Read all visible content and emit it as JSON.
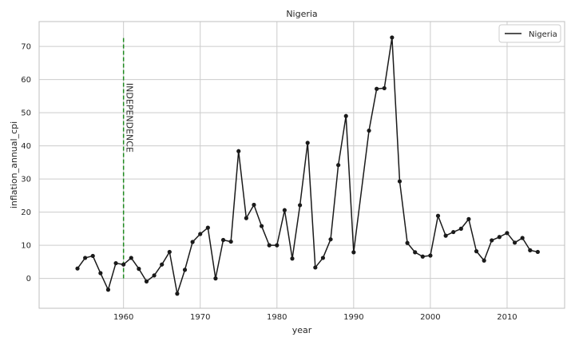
{
  "chart_data": {
    "type": "line",
    "title": "Nigeria",
    "xlabel": "year",
    "ylabel": "inflation_annual_cpi",
    "xlim": [
      1949,
      2017.5
    ],
    "ylim": [
      -9,
      77.5
    ],
    "xticks": [
      1960,
      1970,
      1980,
      1990,
      2000,
      2010
    ],
    "yticks": [
      0,
      10,
      20,
      30,
      40,
      50,
      60,
      70
    ],
    "grid": true,
    "legend": {
      "position": "top-right",
      "entries": [
        "Nigeria"
      ]
    },
    "colors": {
      "line": "#1a1a1a",
      "annotation": "#1f8a1f",
      "grid": "#cccccc",
      "frame": "#bfbfbf"
    },
    "annotation": {
      "text": "INDEPENDENCE",
      "x": 1960,
      "y_range": [
        0,
        72.7
      ]
    },
    "series": [
      {
        "name": "Nigeria",
        "x": [
          1954,
          1955,
          1956,
          1957,
          1958,
          1959,
          1960,
          1961,
          1962,
          1963,
          1964,
          1965,
          1966,
          1967,
          1968,
          1969,
          1970,
          1971,
          1972,
          1973,
          1974,
          1975,
          1976,
          1977,
          1978,
          1979,
          1980,
          1981,
          1982,
          1983,
          1984,
          1985,
          1986,
          1987,
          1988,
          1989,
          1990,
          1992,
          1993,
          1994,
          1995,
          1996,
          1997,
          1998,
          1999,
          2000,
          2001,
          2002,
          2003,
          2004,
          2005,
          2006,
          2007,
          2008,
          2009,
          2010,
          2011,
          2012,
          2013,
          2014
        ],
        "y": [
          3.0,
          6.2,
          6.8,
          1.6,
          -3.4,
          4.6,
          4.2,
          6.2,
          2.9,
          -0.9,
          0.9,
          4.2,
          8.0,
          -4.6,
          2.6,
          11.0,
          13.4,
          15.3,
          0.0,
          11.6,
          11.1,
          38.4,
          18.2,
          22.2,
          15.8,
          10.0,
          10.0,
          20.6,
          6.0,
          22.1,
          40.9,
          3.3,
          6.2,
          11.8,
          34.2,
          49.0,
          7.9,
          44.6,
          57.2,
          57.4,
          72.7,
          29.3,
          10.7,
          7.9,
          6.6,
          6.9,
          18.9,
          12.9,
          14.0,
          15.0,
          17.9,
          8.2,
          5.4,
          11.5,
          12.5,
          13.7,
          10.8,
          12.2,
          8.5,
          8.0
        ]
      }
    ]
  }
}
